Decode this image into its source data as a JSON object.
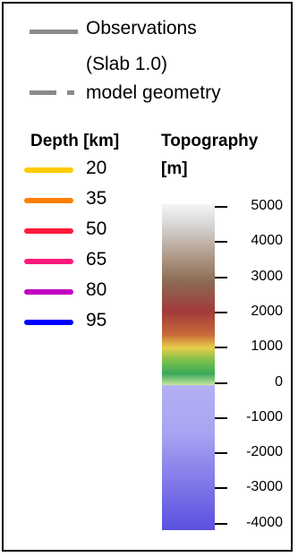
{
  "legend": {
    "observations_line1": "Observations",
    "observations_line2": "(Slab 1.0)",
    "model_geometry": "model geometry",
    "depth_header": "Depth [km]",
    "topo_header_line1": "Topography",
    "topo_header_line2": "[m]"
  },
  "depth_items": [
    {
      "value": "20",
      "color": "#ffcc00"
    },
    {
      "value": "35",
      "color": "#ff7f00"
    },
    {
      "value": "50",
      "color": "#ff1a3a"
    },
    {
      "value": "65",
      "color": "#ff1a7a"
    },
    {
      "value": "80",
      "color": "#c000c0"
    },
    {
      "value": "95",
      "color": "#0000ff"
    }
  ],
  "topography_ticks": [
    "5000",
    "4000",
    "3000",
    "2000",
    "1000",
    "0",
    "-1000",
    "-2000",
    "-3000",
    "-4000"
  ],
  "colors": {
    "observation_line": "#8a8a8a",
    "topo_high": "#f5f5f5",
    "topo_brown": "#8b6a52",
    "topo_red": "#a23a3a",
    "topo_yellow": "#e8cf4a",
    "topo_green": "#3aa85a",
    "topo_sea_top": "#b4b0f4",
    "topo_sea_bottom": "#5a50e0"
  }
}
